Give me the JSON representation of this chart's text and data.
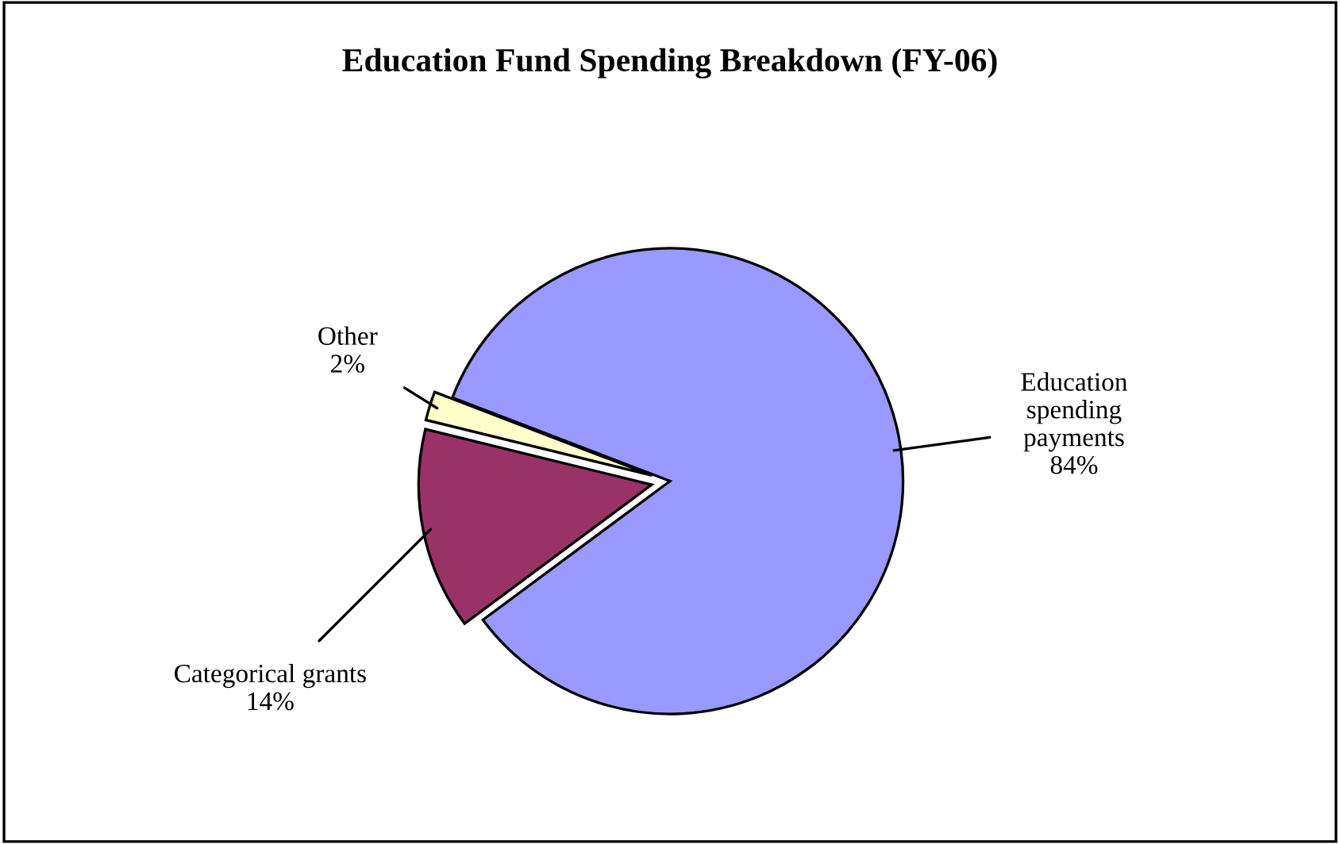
{
  "chart_data": {
    "type": "pie",
    "title": "Education Fund Spending Breakdown (FY-06)",
    "categories": [
      "Education\nspending\npayments",
      "Categorical grants",
      "Other"
    ],
    "values": [
      84,
      14,
      2
    ],
    "colors": [
      "#9999ff",
      "#993366",
      "#ffffcc"
    ],
    "value_labels": [
      "84%",
      "14%",
      "2%"
    ],
    "legend": false
  }
}
